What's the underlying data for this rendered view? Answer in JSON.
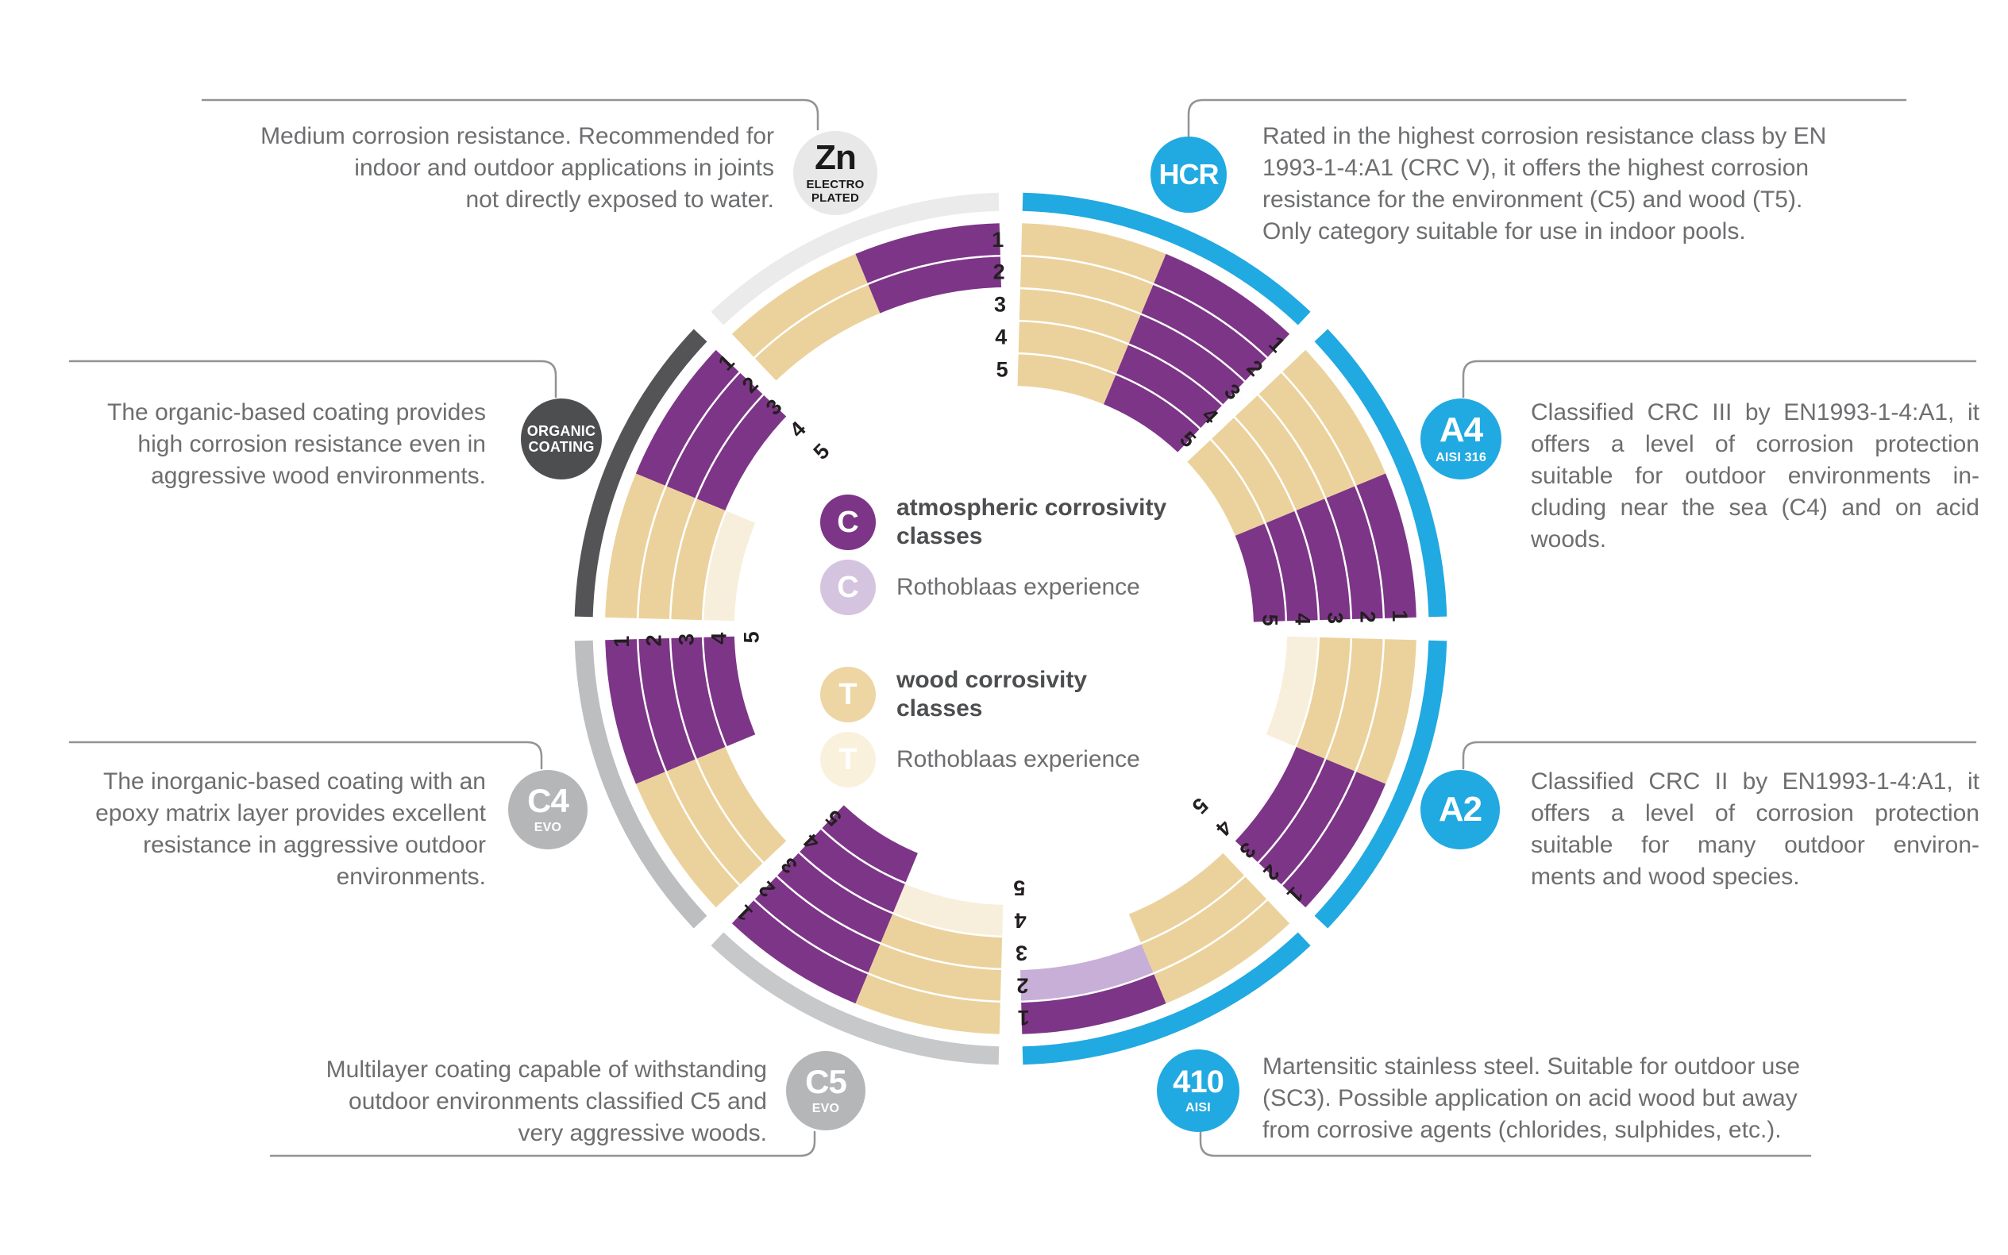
{
  "palette": {
    "C": "#7d3587",
    "CE": "#c8afd7",
    "T": "#ebd29c",
    "TE": "#f7efdb",
    "accent_blue": "#21a9e1",
    "text_gray": "#6d6e70",
    "heading_gray": "#4d4e50",
    "bracket_gray": "#919396",
    "number_dark": "#231f20"
  },
  "legend": {
    "items": [
      {
        "symbol": "C",
        "circle_color": "#7d3587",
        "label": "atmospheric corrosivity\nclasses",
        "bold": true
      },
      {
        "symbol": "C",
        "circle_color": "#d5c4df",
        "label": "Rothoblaas experience",
        "bold": false
      },
      {
        "symbol": "T",
        "circle_color": "#edd6a4",
        "label": "wood corrosivity\nclasses",
        "bold": true
      },
      {
        "symbol": "T",
        "circle_color": "#faf1dd",
        "label": "Rothoblaas experience",
        "bold": false
      }
    ]
  },
  "wheel": {
    "ring_numbers": [
      "1",
      "2",
      "3",
      "4",
      "5"
    ]
  },
  "materials": [
    {
      "id": "hcr",
      "start_deg": 0,
      "arc_color": "#21a9e1",
      "wood_classes": [
        "T",
        "T",
        "T",
        "T",
        "T"
      ],
      "atmospheric_classes": [
        "C",
        "C",
        "C",
        "C",
        "C"
      ],
      "badge": {
        "main": "HCR",
        "sub": [],
        "bg": "#21a9e1",
        "fg": "#ffffff"
      },
      "justified": false,
      "description_lines": [
        "Rated in the highest corrosion resistance class by EN",
        "1993-1-4:A1 (CRC V), it offers the highest corrosion",
        "resistance for the environment (C5) and wood (T5).",
        "Only category suitable for use in indoor pools."
      ]
    },
    {
      "id": "a4",
      "start_deg": 45,
      "arc_color": "#21a9e1",
      "wood_classes": [
        "T",
        "T",
        "T",
        "T",
        "T"
      ],
      "atmospheric_classes": [
        "C",
        "C",
        "C",
        "C",
        "C"
      ],
      "badge": {
        "main": "A4",
        "sub": [
          "AISI 316"
        ],
        "bg": "#21a9e1",
        "fg": "#ffffff"
      },
      "justified": true,
      "description_lines": [
        "Classified CRC III by EN1993-1-4:A1, it",
        "offers a level of corrosion protection",
        "suitable for outdoor environments in-",
        "cluding near the sea (C4) and on acid",
        "woods."
      ]
    },
    {
      "id": "a2",
      "start_deg": 90,
      "arc_color": "#21a9e1",
      "wood_classes": [
        "T",
        "T",
        "T",
        "TE",
        null
      ],
      "atmospheric_classes": [
        "C",
        "C",
        "C",
        null,
        null
      ],
      "badge": {
        "main": "A2",
        "sub": [],
        "bg": "#21a9e1",
        "fg": "#ffffff"
      },
      "justified": true,
      "description_lines": [
        "Classified CRC II by EN1993-1-4:A1, it",
        "offers a level of corrosion protection",
        "suitable for many outdoor environ-",
        "ments and wood species."
      ]
    },
    {
      "id": "aisi410",
      "start_deg": 135,
      "arc_color": "#21a9e1",
      "wood_classes": [
        "T",
        "T",
        "T",
        null,
        null
      ],
      "atmospheric_classes": [
        "C",
        "CE",
        null,
        null,
        null
      ],
      "badge": {
        "main": "410",
        "sub": [
          "AISI"
        ],
        "bg": "#21a9e1",
        "fg": "#ffffff"
      },
      "justified": false,
      "description_lines": [
        "Martensitic stainless steel. Suitable for outdoor use",
        "(SC3). Possible application on acid wood but away",
        "from corrosive agents (chlorides, sulphides, etc.)."
      ]
    },
    {
      "id": "c5",
      "start_deg": 180,
      "arc_color": "#c7c8ca",
      "wood_classes": [
        "T",
        "T",
        "T",
        "TE",
        null
      ],
      "atmospheric_classes": [
        "C",
        "C",
        "C",
        "C",
        "C"
      ],
      "badge": {
        "main": "C5",
        "sub": [
          "EVO"
        ],
        "bg": "#b5b6b8",
        "fg": "#ffffff"
      },
      "justified": false,
      "description_lines": [
        "Multilayer coating capable of withstanding",
        "outdoor environments classified C5 and",
        "very aggressive woods."
      ]
    },
    {
      "id": "c4",
      "start_deg": 225,
      "arc_color": "#bdbec0",
      "wood_classes": [
        "T",
        "T",
        "T",
        null,
        null
      ],
      "atmospheric_classes": [
        "C",
        "C",
        "C",
        "C",
        null
      ],
      "badge": {
        "main": "C4",
        "sub": [
          "EVO"
        ],
        "bg": "#b5b6b8",
        "fg": "#ffffff"
      },
      "justified": false,
      "description_lines": [
        "The inorganic-based coating with an",
        "epoxy matrix layer provides excellent",
        "resistance in aggressive outdoor",
        "environments."
      ]
    },
    {
      "id": "organic",
      "start_deg": 270,
      "arc_color": "#545456",
      "wood_classes": [
        "T",
        "T",
        "T",
        "TE",
        null
      ],
      "atmospheric_classes": [
        "C",
        "C",
        "C",
        null,
        null
      ],
      "badge": {
        "main": "",
        "sub": [
          "ORGANIC",
          "COATING"
        ],
        "bg": "#4d4e50",
        "fg": "#ffffff"
      },
      "justified": false,
      "description_lines": [
        "The organic-based coating provides",
        "high corrosion resistance even in",
        "aggressive wood environments."
      ]
    },
    {
      "id": "zn",
      "start_deg": 315,
      "arc_color": "#ebebec",
      "wood_classes": [
        "T",
        "T",
        null,
        null,
        null
      ],
      "atmospheric_classes": [
        "C",
        "C",
        null,
        null,
        null
      ],
      "badge": {
        "main": "Zn",
        "sub": [
          "ELECTRO",
          "PLATED"
        ],
        "bg": "#e8e8e9",
        "fg": "#1a1a1a"
      },
      "justified": false,
      "description_lines": [
        "Medium corrosion resistance. Recommended for",
        "indoor and outdoor applications in joints",
        "not directly exposed to water."
      ]
    }
  ]
}
